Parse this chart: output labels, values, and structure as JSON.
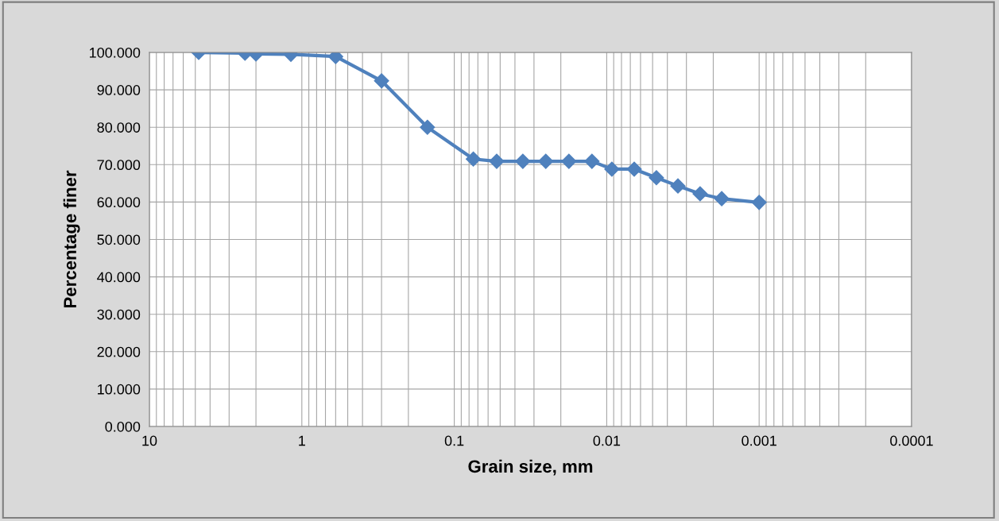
{
  "chart_data": {
    "type": "line",
    "xlabel": "Grain size, mm",
    "ylabel": "Percentage finer",
    "log": "x",
    "grid": true,
    "legend": false,
    "marker": "diamond",
    "line_style": "solid",
    "xlim": [
      10,
      0.0001
    ],
    "xticks": [
      10,
      1,
      0.1,
      0.01,
      0.001,
      0.0001
    ],
    "ylim": [
      0,
      100
    ],
    "yticks": [
      {
        "value": 0,
        "label": "0.000"
      },
      {
        "value": 10,
        "label": "10.000"
      },
      {
        "value": 20,
        "label": "20.000"
      },
      {
        "value": 30,
        "label": "30.000"
      },
      {
        "value": 40,
        "label": "40.000"
      },
      {
        "value": 50,
        "label": "50.000"
      },
      {
        "value": 60,
        "label": "60.000"
      },
      {
        "value": 70,
        "label": "70.000"
      },
      {
        "value": 80,
        "label": "80.000"
      },
      {
        "value": 90,
        "label": "90.000"
      },
      {
        "value": 100,
        "label": "100.000"
      }
    ],
    "x": [
      4.75,
      2.36,
      2.0,
      1.18,
      0.6,
      0.3,
      0.15,
      0.075,
      0.0527,
      0.0355,
      0.0251,
      0.0177,
      0.0125,
      0.00925,
      0.0066,
      0.00472,
      0.00341,
      0.00244,
      0.00176,
      0.001
    ],
    "series": [
      {
        "color": "#4f81bd",
        "values": [
          100,
          99.8,
          99.6,
          99.5,
          98.9,
          92.4,
          80.0,
          71.5,
          70.9,
          70.9,
          70.9,
          70.9,
          70.9,
          68.8,
          68.8,
          66.5,
          64.3,
          62.2,
          60.9,
          59.9
        ]
      }
    ]
  }
}
